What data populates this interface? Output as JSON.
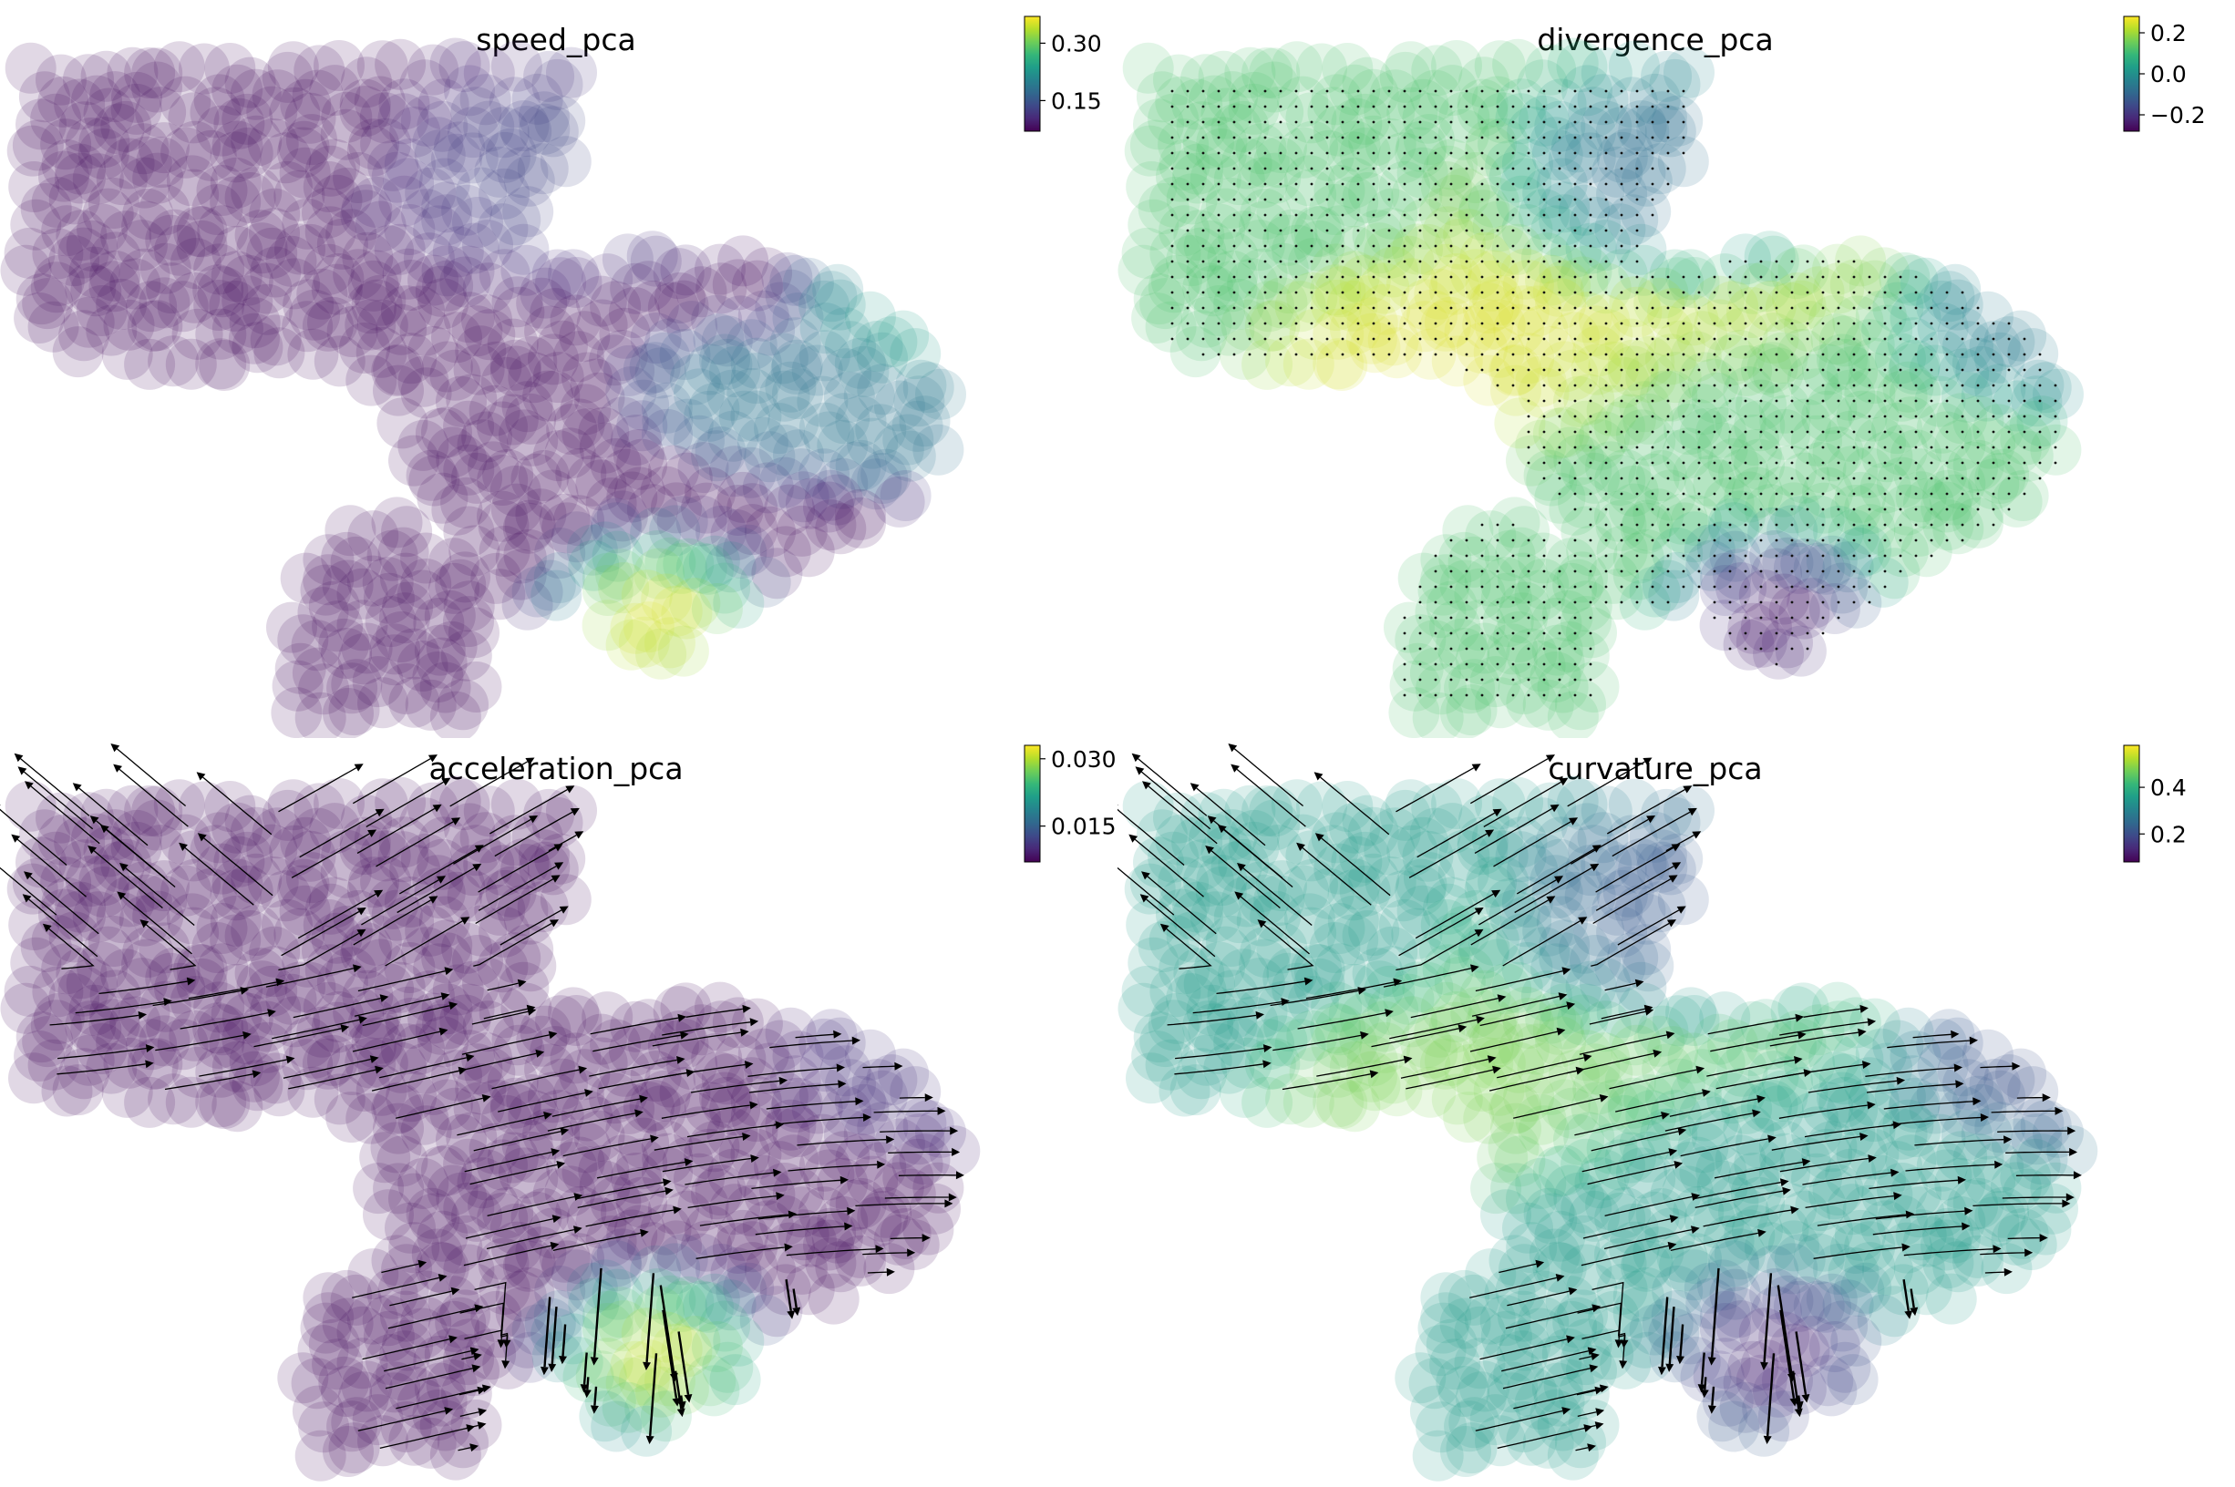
{
  "colormap": [
    "#440154",
    "#482878",
    "#3e4989",
    "#31688e",
    "#26828e",
    "#1f9e89",
    "#35b779",
    "#6ece58",
    "#b5de2b",
    "#fde725"
  ],
  "chart_data": [
    {
      "type": "scatter",
      "title": "speed_pca",
      "colorbar": {
        "range": [
          0.07,
          0.37
        ],
        "ticks": [
          0.15,
          0.3
        ],
        "tick_labels": [
          "0.15",
          "0.30"
        ]
      },
      "overlay": "none",
      "base_value": 0.08,
      "regions": [
        {
          "name": "right-arm",
          "value": 0.24
        },
        {
          "name": "lower-right",
          "value": 0.19
        },
        {
          "name": "top-lobe",
          "value": 0.13
        },
        {
          "name": "bottom-lobe",
          "value": 0.36
        }
      ]
    },
    {
      "type": "scatter",
      "title": "divergence_pca",
      "colorbar": {
        "range": [
          -0.28,
          0.28
        ],
        "ticks": [
          -0.2,
          0.0,
          0.2
        ],
        "tick_labels": [
          "−0.2",
          "0.0",
          "0.2"
        ]
      },
      "overlay": "grid-dots",
      "base_value": 0.12,
      "regions": [
        {
          "name": "left-core",
          "value": 0.25
        },
        {
          "name": "right-arm",
          "value": -0.05
        },
        {
          "name": "top-lobe",
          "value": -0.08
        },
        {
          "name": "bottom-lobe",
          "value": -0.26
        }
      ]
    },
    {
      "type": "scatter",
      "title": "acceleration_pca",
      "colorbar": {
        "range": [
          0.007,
          0.033
        ],
        "ticks": [
          0.015,
          0.03
        ],
        "tick_labels": [
          "0.015",
          "0.030"
        ]
      },
      "overlay": "streamlines",
      "base_value": 0.008,
      "regions": [
        {
          "name": "right-arm",
          "value": 0.011
        },
        {
          "name": "bottom-lobe",
          "value": 0.031
        }
      ]
    },
    {
      "type": "scatter",
      "title": "curvature_pca",
      "colorbar": {
        "range": [
          0.08,
          0.58
        ],
        "ticks": [
          0.2,
          0.4
        ],
        "tick_labels": [
          "0.2",
          "0.4"
        ]
      },
      "overlay": "streamlines",
      "base_value": 0.35,
      "regions": [
        {
          "name": "left-core",
          "value": 0.48
        },
        {
          "name": "right-arm",
          "value": 0.2
        },
        {
          "name": "top-lobe",
          "value": 0.22
        },
        {
          "name": "bottom-lobe",
          "value": 0.12
        }
      ]
    }
  ]
}
